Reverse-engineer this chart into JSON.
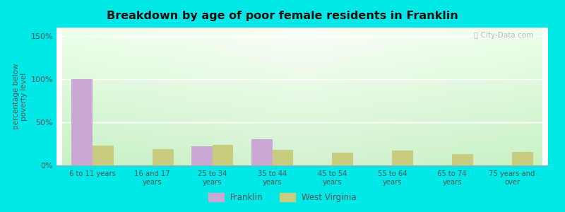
{
  "title": "Breakdown by age of poor female residents in Franklin",
  "categories": [
    "6 to 11 years",
    "16 and 17\nyears",
    "25 to 34\nyears",
    "35 to 44\nyears",
    "45 to 54\nyears",
    "55 to 64\nyears",
    "65 to 74\nyears",
    "75 years and\nover"
  ],
  "franklin_values": [
    100,
    0,
    22,
    30,
    0,
    0,
    0,
    0
  ],
  "wv_values": [
    23,
    19,
    24,
    18,
    15,
    17,
    13,
    16
  ],
  "franklin_color": "#c9a8d4",
  "wv_color": "#c8cc7e",
  "ylabel": "percentage below\npoverty level",
  "ylim": [
    0,
    160
  ],
  "yticks": [
    0,
    50,
    100,
    150
  ],
  "ytick_labels": [
    "0%",
    "50%",
    "100%",
    "150%"
  ],
  "bar_width": 0.35,
  "legend_franklin": "Franklin",
  "legend_wv": "West Virginia",
  "watermark": "ⓘ City-Data.com",
  "figure_bg": "#00e8e8",
  "text_color": "#555555",
  "grid_color": "#ffffff",
  "title_color": "#111111"
}
